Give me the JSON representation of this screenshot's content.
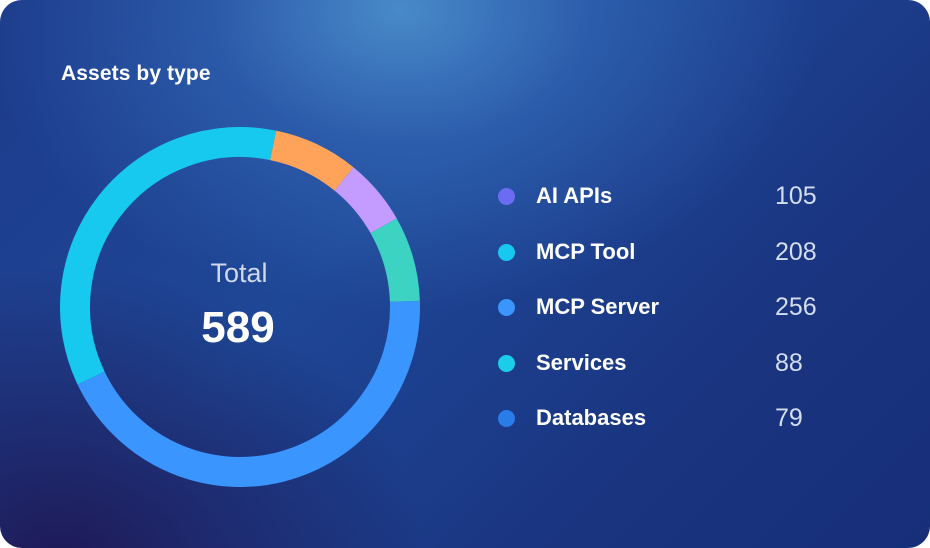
{
  "chart_data": {
    "type": "pie",
    "title": "Assets by type",
    "center_label": "Total",
    "center_value": "589",
    "slices": [
      {
        "label": "MCP Server",
        "value": 256,
        "color": "#3a95ff"
      },
      {
        "label": "MCP Tool",
        "value": 208,
        "color": "#17c8ef"
      },
      {
        "label": "",
        "value": 45,
        "color": "#ffa35a"
      },
      {
        "label": "",
        "value": 35,
        "color": "#c49bff"
      },
      {
        "label": "",
        "value": 45,
        "color": "#3dd3c3"
      }
    ],
    "legend": [
      {
        "label": "AI APIs",
        "value": "105",
        "color": "#6b6cf2"
      },
      {
        "label": "MCP Tool",
        "value": "208",
        "color": "#17c8ef"
      },
      {
        "label": "MCP Server",
        "value": "256",
        "color": "#3a95ff"
      },
      {
        "label": "Services",
        "value": "88",
        "color": "#1ccdea"
      },
      {
        "label": "Databases",
        "value": "79",
        "color": "#2a7de8"
      }
    ]
  }
}
